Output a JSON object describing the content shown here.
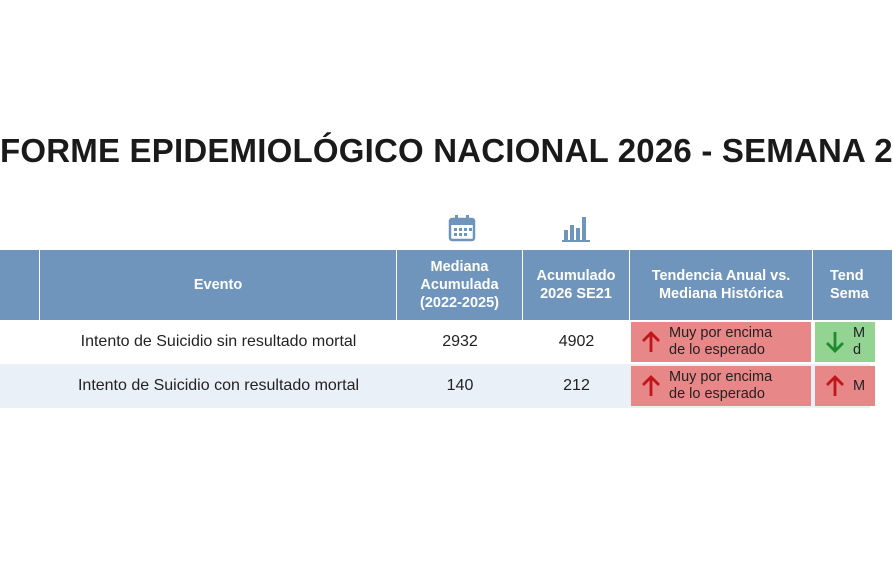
{
  "title": "FORME EPIDEMIOLÓGICO NACIONAL 2026 - SEMANA 2",
  "table": {
    "headers": [
      [
        "Evento"
      ],
      [
        "Mediana",
        "Acumulada",
        "(2022-2025)"
      ],
      [
        "Acumulado",
        "2026 SE21"
      ],
      [
        "Tendencia Anual vs.",
        "Mediana Histórica"
      ],
      [
        "Tend",
        "Sema"
      ]
    ],
    "rows": [
      [
        "Intento de Suicidio sin resultado mortal",
        "2932",
        "4902",
        [
          "Muy por encima",
          "de lo esperado"
        ],
        [
          "M",
          "d"
        ]
      ],
      [
        "Intento de Suicidio con resultado mortal",
        "140",
        "212",
        [
          "Muy por encima",
          "de lo esperado"
        ],
        [
          "M"
        ]
      ]
    ]
  }
}
